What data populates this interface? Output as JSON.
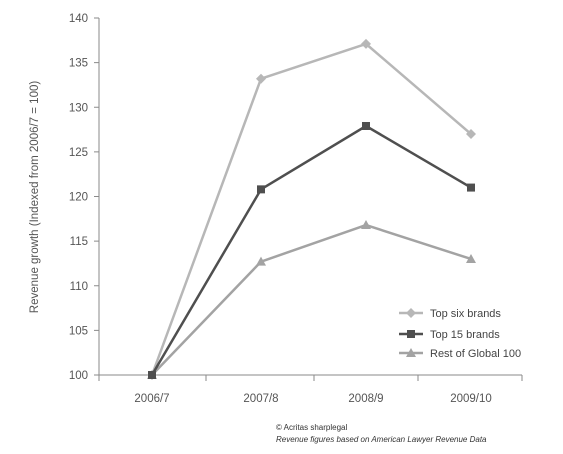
{
  "chart_data": {
    "type": "line",
    "categories": [
      "2006/7",
      "2007/8",
      "2008/9",
      "2009/10"
    ],
    "ylabel": "Revenue growth (Indexed from 2006/7 = 100)",
    "xlabel": "",
    "ylim": [
      100,
      140
    ],
    "yticks": [
      "100",
      "105",
      "110",
      "115",
      "120",
      "125",
      "130",
      "135",
      "140"
    ],
    "grid": false,
    "legend_position": "bottom-right",
    "series": [
      {
        "name": "Top six brands",
        "values": [
          100,
          133.2,
          137.1,
          127.0
        ],
        "marker": "diamond",
        "color": "#b7b7b7"
      },
      {
        "name": "Top 15 brands",
        "values": [
          100,
          120.8,
          127.9,
          121.0
        ],
        "marker": "square",
        "color": "#4f4f4f"
      },
      {
        "name": "Rest of Global 100",
        "values": [
          100,
          112.7,
          116.8,
          113.0
        ],
        "marker": "triangle",
        "color": "#a3a3a3"
      }
    ]
  },
  "footer": {
    "credit": "© Acritas sharplegal",
    "source": "Revenue figures based on American Lawyer Revenue Data"
  }
}
